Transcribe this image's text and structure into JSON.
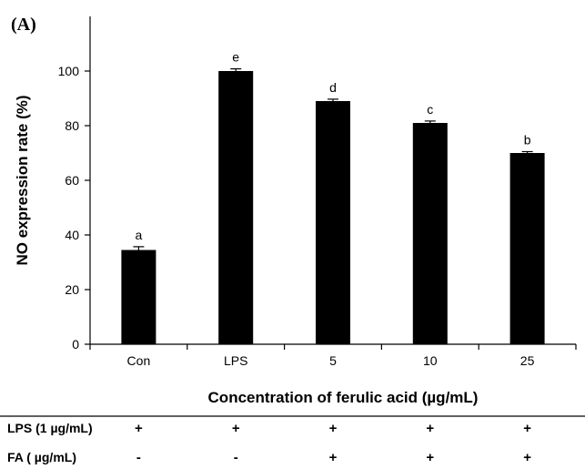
{
  "panel_label": "(A)",
  "chart_data": {
    "type": "bar",
    "categories": [
      "Con",
      "LPS",
      "5",
      "10",
      "25"
    ],
    "values": [
      34.5,
      100,
      89,
      81,
      70
    ],
    "errors": [
      1.2,
      0.8,
      0.7,
      0.7,
      0.5
    ],
    "significance_labels": [
      "a",
      "e",
      "d",
      "c",
      "b"
    ],
    "xlabel": "Concentration of ferulic acid (µg/mL)",
    "ylabel": "NO expression rate (%)",
    "ylim": [
      0,
      120
    ],
    "yticks": [
      0,
      20,
      40,
      60,
      80,
      100
    ],
    "bar_color": "#000000",
    "grid": false
  },
  "treatment_table": {
    "rows": [
      {
        "label": "LPS (1 µg/mL)",
        "marks": [
          "+",
          "+",
          "+",
          "+",
          "+"
        ]
      },
      {
        "label": "FA ( µg/mL)",
        "marks": [
          "-",
          "-",
          "+",
          "+",
          "+"
        ]
      }
    ]
  }
}
